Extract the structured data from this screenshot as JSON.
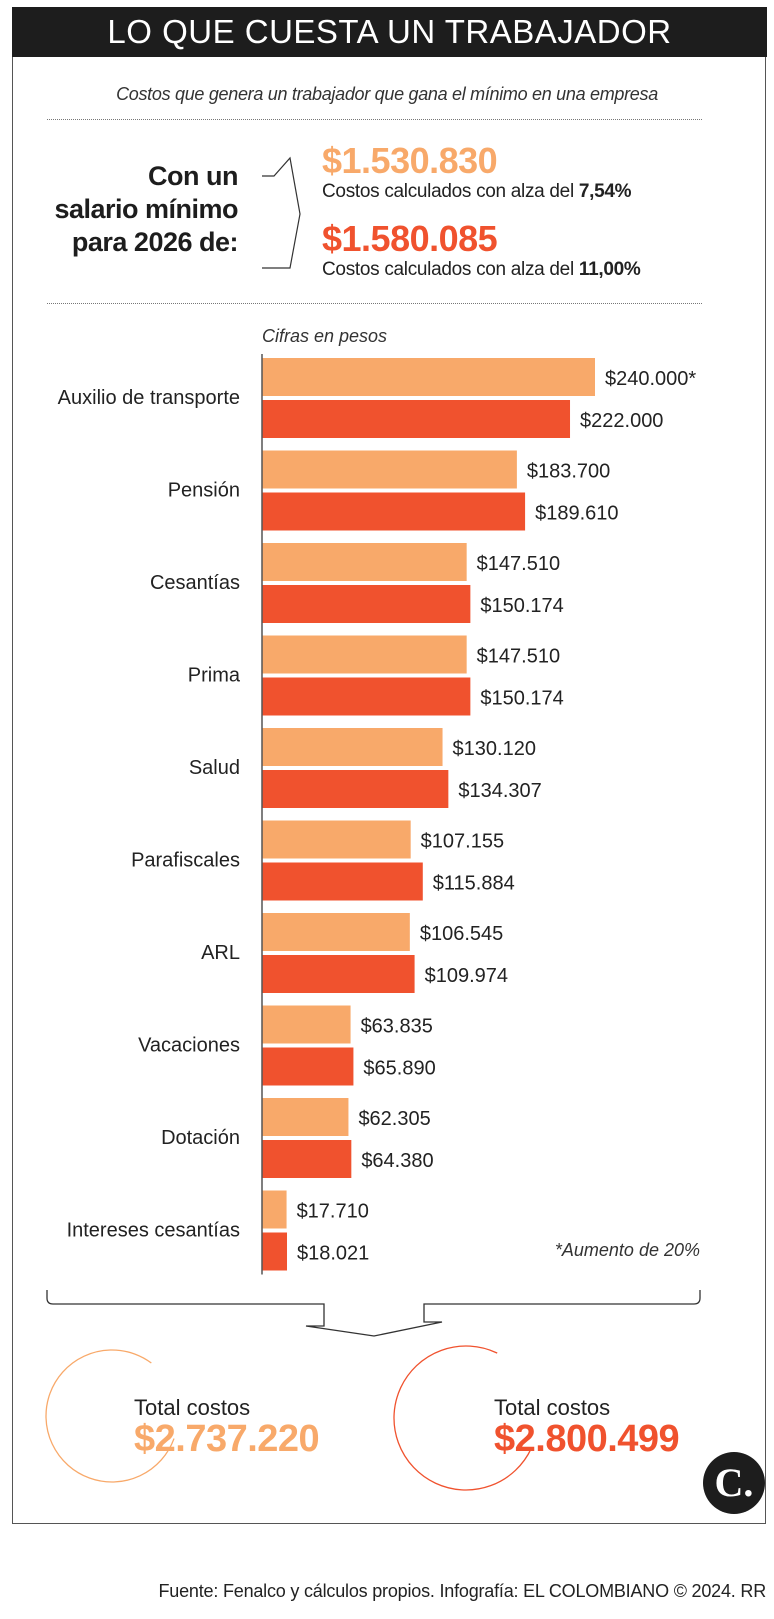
{
  "title": "LO QUE CUESTA UN TRABAJADOR",
  "subtitle": "Costos que genera un trabajador que gana el mínimo en una empresa",
  "lead": [
    "Con un",
    "salario mínimo",
    "para 2026 de:"
  ],
  "scenarios": [
    {
      "salary": "$1.530.830",
      "caption": "Costos calculados con alza del ",
      "rate": "7,54%",
      "color": "#F8A96A"
    },
    {
      "salary": "$1.580.085",
      "caption": "Costos calculados con alza del ",
      "rate": "11,00%",
      "color": "#F0522E"
    }
  ],
  "units_note": "Cifras en pesos",
  "footnote": "*Aumento de 20%",
  "chart_data": {
    "type": "bar",
    "orientation": "horizontal",
    "categories": [
      "Auxilio de transporte",
      "Pensión",
      "Cesantías",
      "Prima",
      "Salud",
      "Parafiscales",
      "ARL",
      "Vacaciones",
      "Dotación",
      "Intereses cesantías"
    ],
    "series": [
      {
        "values": [
          240000,
          183700,
          147510,
          147510,
          130120,
          107155,
          106545,
          63835,
          62305,
          17710
        ],
        "labels": [
          "$240.000*",
          "$183.700",
          "$147.510",
          "$147.510",
          "$130.120",
          "$107.155",
          "$106.545",
          "$63.835",
          "$62.305",
          "$17.710"
        ],
        "color": "#F8A96A"
      },
      {
        "values": [
          222000,
          189610,
          150174,
          150174,
          134307,
          115884,
          109974,
          65890,
          64380,
          18021
        ],
        "labels": [
          "$222.000",
          "$189.610",
          "$150.174",
          "$150.174",
          "$134.307",
          "$115.884",
          "$109.974",
          "$65.890",
          "$64.380",
          "$18.021"
        ],
        "color": "#F0522E"
      }
    ],
    "grid": false
  },
  "totals": [
    {
      "label": "Total costos",
      "value": "$2.737.220",
      "color": "#F8A96A"
    },
    {
      "label": "Total costos",
      "value": "$2.800.499",
      "color": "#F0522E"
    }
  ],
  "logo": "C.",
  "footer": "Fuente: Fenalco y cálculos propios. Infografía: EL COLOMBIANO © 2024. RR"
}
